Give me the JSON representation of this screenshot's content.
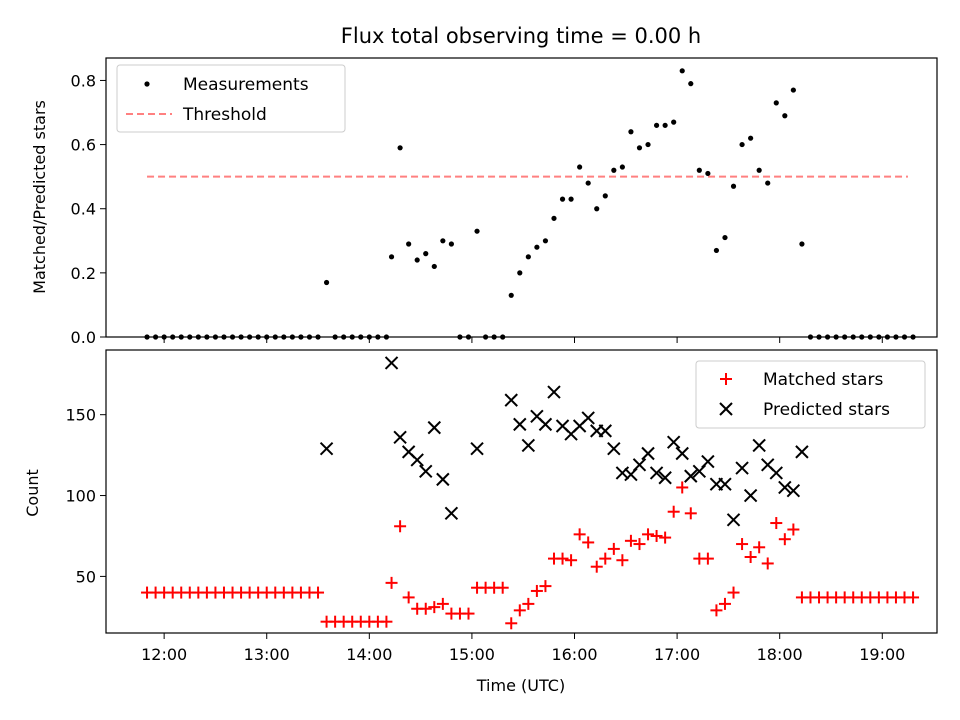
{
  "chart_data": [
    {
      "type": "scatter",
      "title": "Flux total observing time = 0.00 h",
      "ylabel": "Matched/Predicted stars",
      "xlabel": "",
      "ylim": [
        0,
        0.87
      ],
      "yticks": [
        "0.0",
        "0.2",
        "0.4",
        "0.6",
        "0.8"
      ],
      "ytick_values": [
        0,
        0.2,
        0.4,
        0.6,
        0.8
      ],
      "xlim": [
        "11:26",
        "19:32"
      ],
      "legend": {
        "position": "upper-left",
        "entries": [
          "Measurements",
          "Threshold"
        ]
      },
      "threshold": {
        "name": "Threshold",
        "value": 0.5,
        "x_start": "11:50",
        "x_end": "19:15",
        "color": "#ff8080",
        "style": "dashed"
      },
      "series": [
        {
          "name": "Measurements",
          "color": "#000000",
          "marker": "dot",
          "points": [
            [
              "11:50",
              0
            ],
            [
              "11:55",
              0
            ],
            [
              "12:00",
              0
            ],
            [
              "12:05",
              0
            ],
            [
              "12:10",
              0
            ],
            [
              "12:15",
              0
            ],
            [
              "12:20",
              0
            ],
            [
              "12:25",
              0
            ],
            [
              "12:30",
              0
            ],
            [
              "12:35",
              0
            ],
            [
              "12:40",
              0
            ],
            [
              "12:45",
              0
            ],
            [
              "12:50",
              0
            ],
            [
              "12:55",
              0
            ],
            [
              "13:00",
              0
            ],
            [
              "13:05",
              0
            ],
            [
              "13:10",
              0
            ],
            [
              "13:15",
              0
            ],
            [
              "13:20",
              0
            ],
            [
              "13:25",
              0
            ],
            [
              "13:30",
              0
            ],
            [
              "13:35",
              0.17
            ],
            [
              "13:40",
              0
            ],
            [
              "13:45",
              0
            ],
            [
              "13:50",
              0
            ],
            [
              "13:55",
              0
            ],
            [
              "14:00",
              0
            ],
            [
              "14:05",
              0
            ],
            [
              "14:10",
              0
            ],
            [
              "14:13",
              0.25
            ],
            [
              "14:18",
              0.59
            ],
            [
              "14:23",
              0.29
            ],
            [
              "14:28",
              0.24
            ],
            [
              "14:33",
              0.26
            ],
            [
              "14:38",
              0.22
            ],
            [
              "14:43",
              0.3
            ],
            [
              "14:48",
              0.29
            ],
            [
              "14:53",
              0
            ],
            [
              "14:58",
              0
            ],
            [
              "15:03",
              0.33
            ],
            [
              "15:08",
              0
            ],
            [
              "15:13",
              0
            ],
            [
              "15:18",
              0
            ],
            [
              "15:23",
              0.13
            ],
            [
              "15:28",
              0.2
            ],
            [
              "15:33",
              0.25
            ],
            [
              "15:38",
              0.28
            ],
            [
              "15:43",
              0.3
            ],
            [
              "15:48",
              0.37
            ],
            [
              "15:53",
              0.43
            ],
            [
              "15:58",
              0.43
            ],
            [
              "16:03",
              0.53
            ],
            [
              "16:08",
              0.48
            ],
            [
              "16:13",
              0.4
            ],
            [
              "16:18",
              0.44
            ],
            [
              "16:23",
              0.52
            ],
            [
              "16:28",
              0.53
            ],
            [
              "16:33",
              0.64
            ],
            [
              "16:38",
              0.59
            ],
            [
              "16:43",
              0.6
            ],
            [
              "16:48",
              0.66
            ],
            [
              "16:53",
              0.66
            ],
            [
              "16:58",
              0.67
            ],
            [
              "17:03",
              0.83
            ],
            [
              "17:08",
              0.79
            ],
            [
              "17:13",
              0.52
            ],
            [
              "17:18",
              0.51
            ],
            [
              "17:23",
              0.27
            ],
            [
              "17:28",
              0.31
            ],
            [
              "17:33",
              0.47
            ],
            [
              "17:38",
              0.6
            ],
            [
              "17:43",
              0.62
            ],
            [
              "17:48",
              0.52
            ],
            [
              "17:53",
              0.48
            ],
            [
              "17:58",
              0.73
            ],
            [
              "18:03",
              0.69
            ],
            [
              "18:08",
              0.77
            ],
            [
              "18:13",
              0.29
            ],
            [
              "18:18",
              0
            ],
            [
              "18:23",
              0
            ],
            [
              "18:28",
              0
            ],
            [
              "18:33",
              0
            ],
            [
              "18:38",
              0
            ],
            [
              "18:43",
              0
            ],
            [
              "18:48",
              0
            ],
            [
              "18:53",
              0
            ],
            [
              "18:58",
              0
            ],
            [
              "19:03",
              0
            ],
            [
              "19:08",
              0
            ],
            [
              "19:13",
              0
            ],
            [
              "19:18",
              0
            ]
          ]
        }
      ]
    },
    {
      "type": "scatter",
      "title": "",
      "ylabel": "Count",
      "xlabel": "Time (UTC)",
      "ylim": [
        15,
        190
      ],
      "yticks": [
        "50",
        "100",
        "150"
      ],
      "ytick_values": [
        50,
        100,
        150
      ],
      "xlim": [
        "11:26",
        "19:32"
      ],
      "xticks": [
        "12:00",
        "13:00",
        "14:00",
        "15:00",
        "16:00",
        "17:00",
        "18:00",
        "19:00"
      ],
      "legend": {
        "position": "upper-right",
        "entries": [
          "Matched stars",
          "Predicted stars"
        ]
      },
      "series": [
        {
          "name": "Matched stars",
          "color": "#ff0000",
          "marker": "plus",
          "points": [
            [
              "11:50",
              40
            ],
            [
              "11:55",
              40
            ],
            [
              "12:00",
              40
            ],
            [
              "12:05",
              40
            ],
            [
              "12:10",
              40
            ],
            [
              "12:15",
              40
            ],
            [
              "12:20",
              40
            ],
            [
              "12:25",
              40
            ],
            [
              "12:30",
              40
            ],
            [
              "12:35",
              40
            ],
            [
              "12:40",
              40
            ],
            [
              "12:45",
              40
            ],
            [
              "12:50",
              40
            ],
            [
              "12:55",
              40
            ],
            [
              "13:00",
              40
            ],
            [
              "13:05",
              40
            ],
            [
              "13:10",
              40
            ],
            [
              "13:15",
              40
            ],
            [
              "13:20",
              40
            ],
            [
              "13:25",
              40
            ],
            [
              "13:30",
              40
            ],
            [
              "13:35",
              22
            ],
            [
              "13:40",
              22
            ],
            [
              "13:45",
              22
            ],
            [
              "13:50",
              22
            ],
            [
              "13:55",
              22
            ],
            [
              "14:00",
              22
            ],
            [
              "14:05",
              22
            ],
            [
              "14:10",
              22
            ],
            [
              "14:13",
              46
            ],
            [
              "14:18",
              81
            ],
            [
              "14:23",
              37
            ],
            [
              "14:28",
              30
            ],
            [
              "14:33",
              30
            ],
            [
              "14:38",
              31
            ],
            [
              "14:43",
              33
            ],
            [
              "14:48",
              27
            ],
            [
              "14:53",
              27
            ],
            [
              "14:58",
              27
            ],
            [
              "15:03",
              43
            ],
            [
              "15:08",
              43
            ],
            [
              "15:13",
              43
            ],
            [
              "15:18",
              43
            ],
            [
              "15:23",
              21
            ],
            [
              "15:28",
              29
            ],
            [
              "15:33",
              33
            ],
            [
              "15:38",
              41
            ],
            [
              "15:43",
              44
            ],
            [
              "15:48",
              61
            ],
            [
              "15:53",
              61
            ],
            [
              "15:58",
              60
            ],
            [
              "16:03",
              76
            ],
            [
              "16:08",
              71
            ],
            [
              "16:13",
              56
            ],
            [
              "16:18",
              61
            ],
            [
              "16:23",
              67
            ],
            [
              "16:28",
              60
            ],
            [
              "16:33",
              72
            ],
            [
              "16:38",
              70
            ],
            [
              "16:43",
              76
            ],
            [
              "16:48",
              75
            ],
            [
              "16:53",
              74
            ],
            [
              "16:58",
              90
            ],
            [
              "17:03",
              105
            ],
            [
              "17:08",
              89
            ],
            [
              "17:13",
              61
            ],
            [
              "17:18",
              61
            ],
            [
              "17:23",
              29
            ],
            [
              "17:28",
              33
            ],
            [
              "17:33",
              40
            ],
            [
              "17:38",
              70
            ],
            [
              "17:43",
              62
            ],
            [
              "17:48",
              68
            ],
            [
              "17:53",
              58
            ],
            [
              "17:58",
              83
            ],
            [
              "18:03",
              73
            ],
            [
              "18:08",
              79
            ],
            [
              "18:13",
              37
            ],
            [
              "18:18",
              37
            ],
            [
              "18:23",
              37
            ],
            [
              "18:28",
              37
            ],
            [
              "18:33",
              37
            ],
            [
              "18:38",
              37
            ],
            [
              "18:43",
              37
            ],
            [
              "18:48",
              37
            ],
            [
              "18:53",
              37
            ],
            [
              "18:58",
              37
            ],
            [
              "19:03",
              37
            ],
            [
              "19:08",
              37
            ],
            [
              "19:13",
              37
            ],
            [
              "19:18",
              37
            ]
          ]
        },
        {
          "name": "Predicted stars",
          "color": "#000000",
          "marker": "x",
          "points": [
            [
              "13:35",
              129
            ],
            [
              "14:13",
              182
            ],
            [
              "14:18",
              136
            ],
            [
              "14:23",
              127
            ],
            [
              "14:28",
              122
            ],
            [
              "14:33",
              115
            ],
            [
              "14:38",
              142
            ],
            [
              "14:43",
              110
            ],
            [
              "14:48",
              89
            ],
            [
              "15:03",
              129
            ],
            [
              "15:23",
              159
            ],
            [
              "15:28",
              144
            ],
            [
              "15:33",
              131
            ],
            [
              "15:38",
              149
            ],
            [
              "15:43",
              144
            ],
            [
              "15:48",
              164
            ],
            [
              "15:53",
              143
            ],
            [
              "15:58",
              138
            ],
            [
              "16:03",
              143
            ],
            [
              "16:08",
              148
            ],
            [
              "16:13",
              140
            ],
            [
              "16:18",
              140
            ],
            [
              "16:23",
              129
            ],
            [
              "16:28",
              114
            ],
            [
              "16:33",
              113
            ],
            [
              "16:38",
              119
            ],
            [
              "16:43",
              126
            ],
            [
              "16:48",
              114
            ],
            [
              "16:53",
              111
            ],
            [
              "16:58",
              133
            ],
            [
              "17:03",
              126
            ],
            [
              "17:08",
              112
            ],
            [
              "17:13",
              115
            ],
            [
              "17:18",
              121
            ],
            [
              "17:23",
              107
            ],
            [
              "17:28",
              107
            ],
            [
              "17:33",
              85
            ],
            [
              "17:38",
              117
            ],
            [
              "17:43",
              100
            ],
            [
              "17:48",
              131
            ],
            [
              "17:53",
              119
            ],
            [
              "17:58",
              114
            ],
            [
              "18:03",
              105
            ],
            [
              "18:08",
              103
            ],
            [
              "18:13",
              127
            ]
          ]
        }
      ]
    }
  ]
}
